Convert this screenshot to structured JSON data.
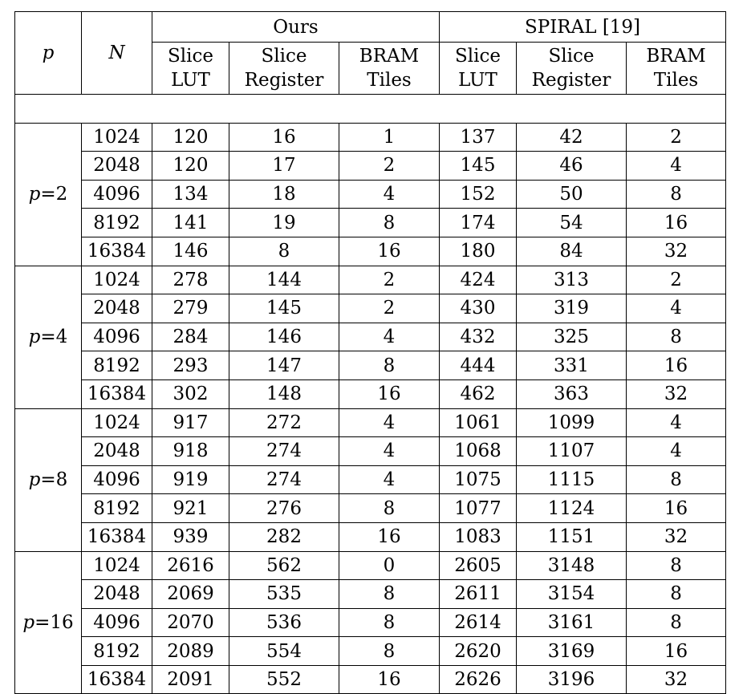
{
  "header": {
    "p_label": "p",
    "n_label": "N",
    "group_ours": "Ours",
    "group_spiral": "SPIRAL [19]",
    "cols": [
      {
        "line1": "Slice",
        "line2": "LUT"
      },
      {
        "line1": "Slice",
        "line2": "Register"
      },
      {
        "line1": "BRAM",
        "line2": "Tiles"
      },
      {
        "line1": "Slice",
        "line2": "LUT"
      },
      {
        "line1": "Slice",
        "line2": "Register"
      },
      {
        "line1": "BRAM",
        "line2": "Tiles"
      }
    ]
  },
  "groups": [
    {
      "label": "p=2",
      "rows": [
        [
          "1024",
          "120",
          "16",
          "1",
          "137",
          "42",
          "2"
        ],
        [
          "2048",
          "120",
          "17",
          "2",
          "145",
          "46",
          "4"
        ],
        [
          "4096",
          "134",
          "18",
          "4",
          "152",
          "50",
          "8"
        ],
        [
          "8192",
          "141",
          "19",
          "8",
          "174",
          "54",
          "16"
        ],
        [
          "16384",
          "146",
          "8",
          "16",
          "180",
          "84",
          "32"
        ]
      ]
    },
    {
      "label": "p=4",
      "rows": [
        [
          "1024",
          "278",
          "144",
          "2",
          "424",
          "313",
          "2"
        ],
        [
          "2048",
          "279",
          "145",
          "2",
          "430",
          "319",
          "4"
        ],
        [
          "4096",
          "284",
          "146",
          "4",
          "432",
          "325",
          "8"
        ],
        [
          "8192",
          "293",
          "147",
          "8",
          "444",
          "331",
          "16"
        ],
        [
          "16384",
          "302",
          "148",
          "16",
          "462",
          "363",
          "32"
        ]
      ]
    },
    {
      "label": "p=8",
      "rows": [
        [
          "1024",
          "917",
          "272",
          "4",
          "1061",
          "1099",
          "4"
        ],
        [
          "2048",
          "918",
          "274",
          "4",
          "1068",
          "1107",
          "4"
        ],
        [
          "4096",
          "919",
          "274",
          "4",
          "1075",
          "1115",
          "8"
        ],
        [
          "8192",
          "921",
          "276",
          "8",
          "1077",
          "1124",
          "16"
        ],
        [
          "16384",
          "939",
          "282",
          "16",
          "1083",
          "1151",
          "32"
        ]
      ]
    },
    {
      "label": "p=16",
      "rows": [
        [
          "1024",
          "2616",
          "562",
          "0",
          "2605",
          "3148",
          "8"
        ],
        [
          "2048",
          "2069",
          "535",
          "8",
          "2611",
          "3154",
          "8"
        ],
        [
          "4096",
          "2070",
          "536",
          "8",
          "2614",
          "3161",
          "8"
        ],
        [
          "8192",
          "2089",
          "554",
          "8",
          "2620",
          "3169",
          "16"
        ],
        [
          "16384",
          "2091",
          "552",
          "16",
          "2626",
          "3196",
          "32"
        ]
      ]
    }
  ]
}
